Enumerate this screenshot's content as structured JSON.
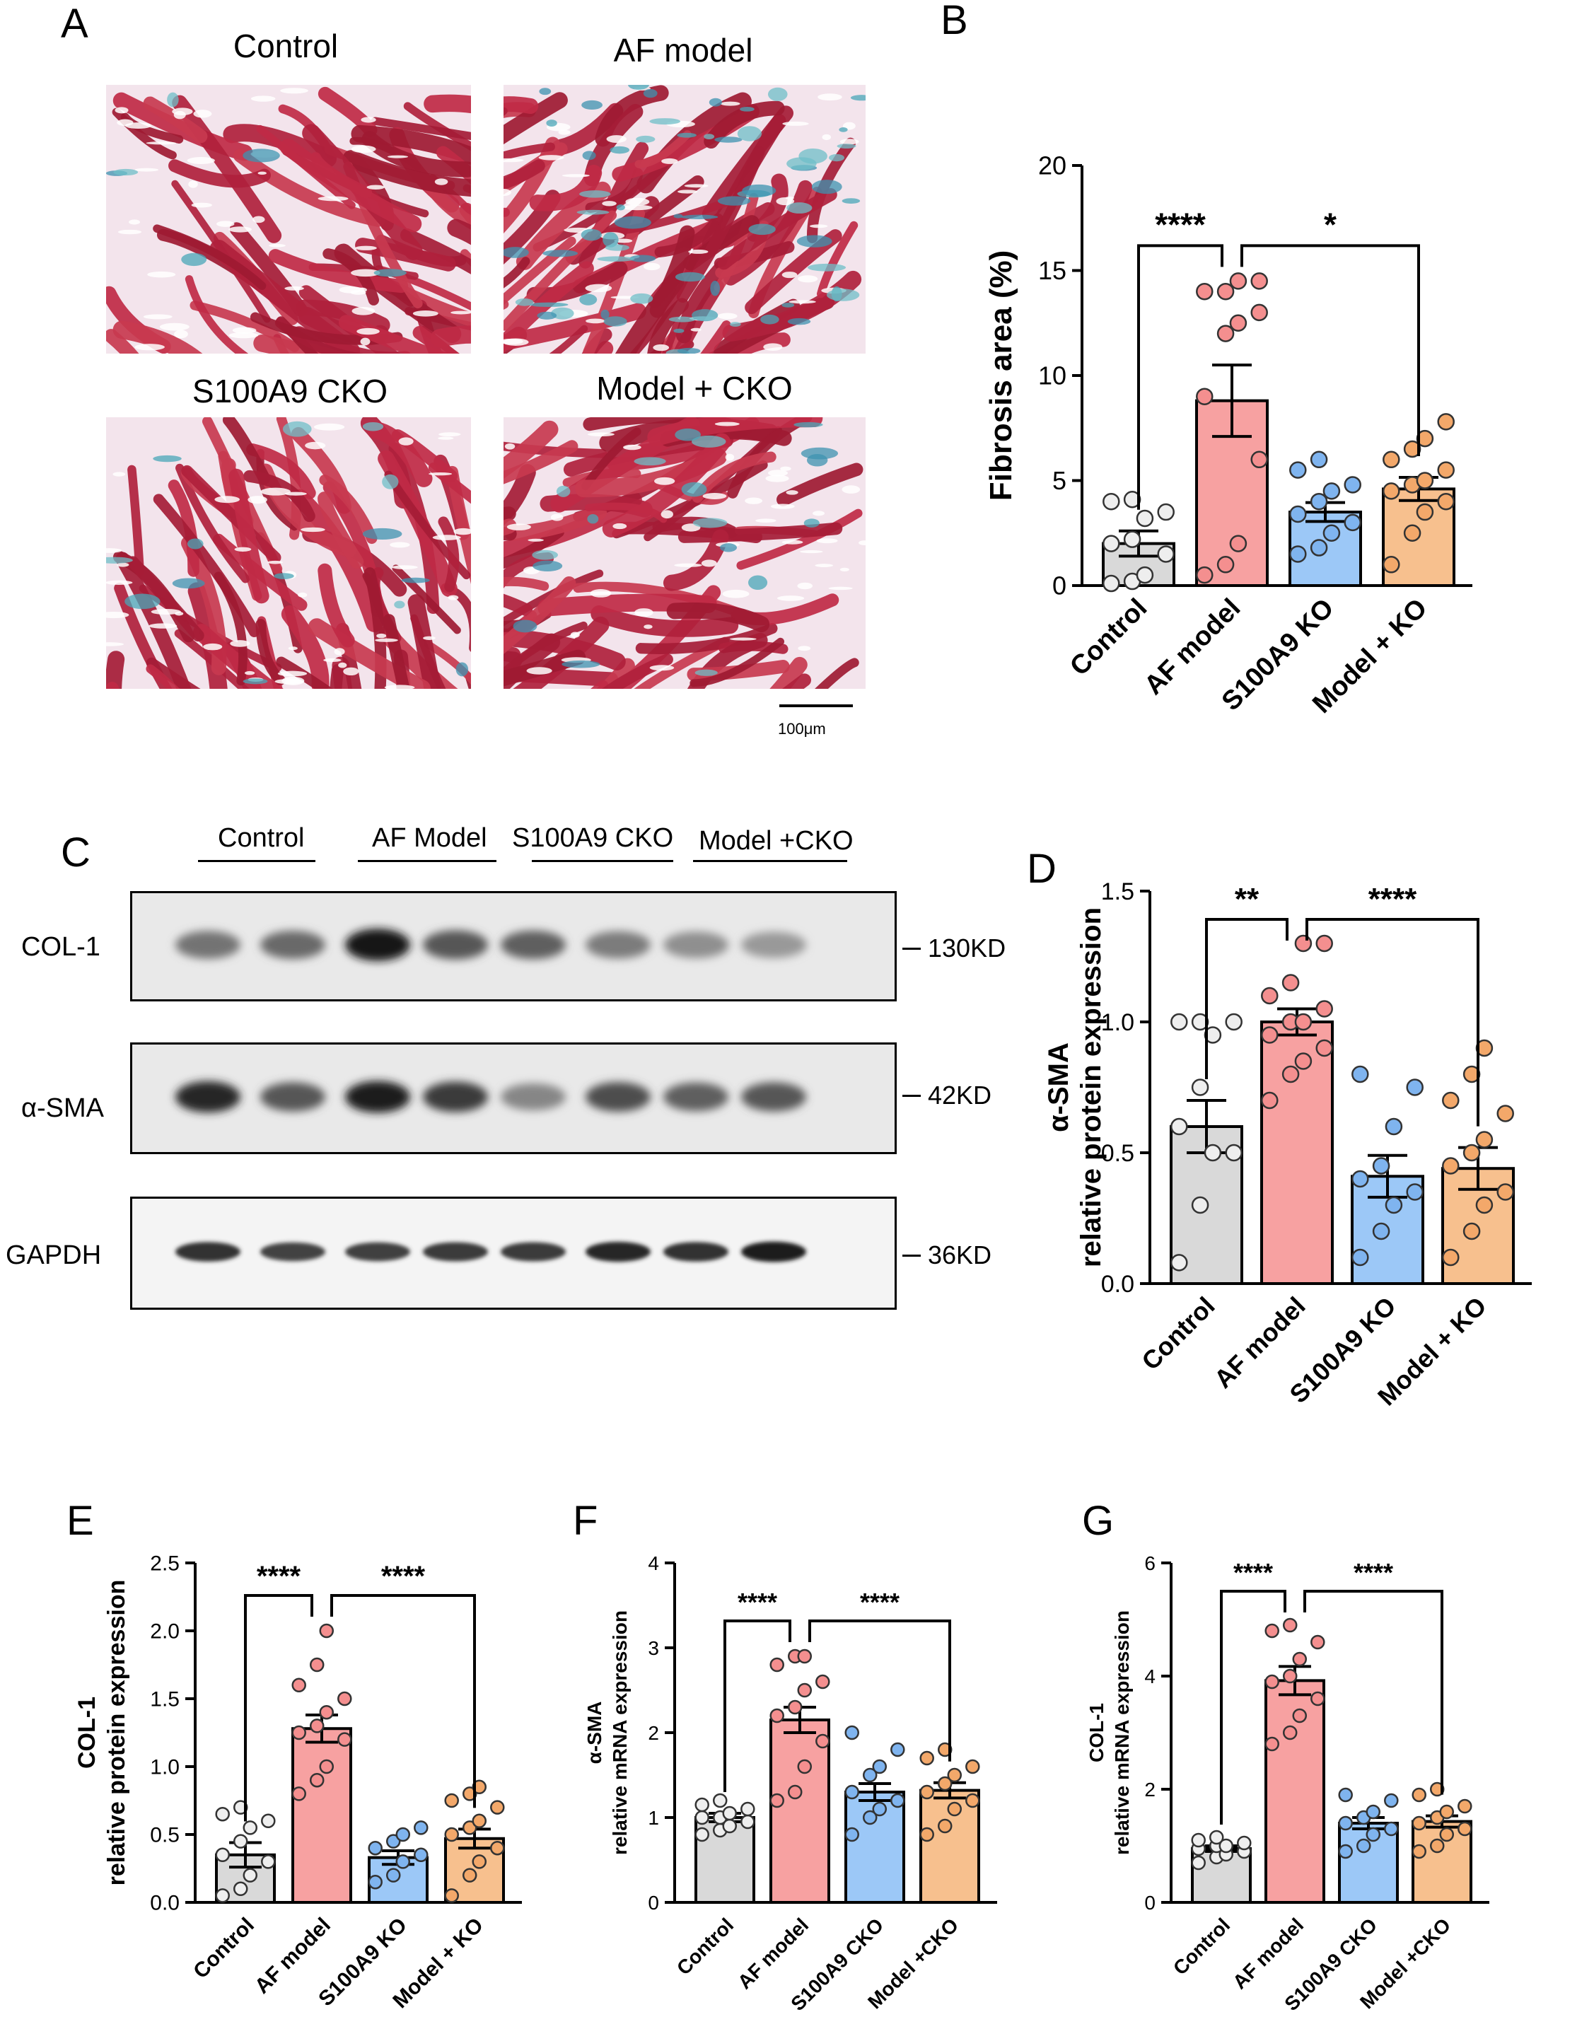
{
  "panels": {
    "A": {
      "letter": "A",
      "images": [
        {
          "title": "Control",
          "fibrosis_level": 0.05
        },
        {
          "title": "AF model",
          "fibrosis_level": 0.55
        },
        {
          "title": "S100A9 CKO",
          "fibrosis_level": 0.12
        },
        {
          "title": "Model + CKO",
          "fibrosis_level": 0.15
        }
      ],
      "scale_bar_label": "100μm"
    },
    "C": {
      "letter": "C",
      "lane_groups": [
        "Control",
        "AF Model",
        "S100A9 CKO",
        "Model +CKO"
      ],
      "blots": [
        {
          "label": "COL-1",
          "kd": "130KD",
          "band_intensity": [
            0.45,
            0.5,
            0.95,
            0.6,
            0.55,
            0.4,
            0.3,
            0.25
          ]
        },
        {
          "label": "α-SMA",
          "kd": "42KD",
          "band_intensity": [
            0.85,
            0.6,
            0.9,
            0.75,
            0.35,
            0.65,
            0.55,
            0.6
          ]
        },
        {
          "label": "GAPDH",
          "kd": "36KD",
          "band_intensity": [
            0.8,
            0.7,
            0.72,
            0.75,
            0.75,
            0.85,
            0.8,
            0.9
          ]
        }
      ]
    }
  },
  "palette": {
    "control": "#d9d9d9",
    "af": "#f7a1a1",
    "ko": "#9cc8f7",
    "mko": "#f7c08e",
    "control_dot": "#eeeeee",
    "af_dot": "#f48f8f",
    "ko_dot": "#7fb4ef",
    "mko_dot": "#f3a86a"
  },
  "chart_data": [
    {
      "letter": "B",
      "type": "bar",
      "categories": [
        "Control",
        "AF model",
        "S100A9 KO",
        "Model + KO"
      ],
      "values": [
        2.0,
        8.8,
        3.5,
        4.6
      ],
      "errors": [
        0.6,
        1.7,
        0.45,
        0.55
      ],
      "points": [
        [
          0.1,
          0.2,
          0.5,
          1.5,
          2.0,
          2.2,
          3.2,
          3.5,
          4.0,
          4.1
        ],
        [
          0.5,
          1.0,
          2.0,
          6.0,
          9.0,
          12.0,
          12.5,
          13.0,
          14.0,
          14.0,
          14.5,
          14.5
        ],
        [
          1.5,
          1.8,
          2.5,
          3.0,
          3.4,
          4.0,
          4.5,
          4.8,
          5.5,
          6.0
        ],
        [
          1.0,
          2.5,
          3.5,
          4.0,
          4.5,
          4.8,
          5.0,
          5.5,
          6.0,
          6.5,
          7.0,
          7.8
        ]
      ],
      "ylabel": "Fibrosis area (%)",
      "ylabel2": "",
      "ylim": [
        0,
        20
      ],
      "yticks": [
        "0",
        "5",
        "10",
        "15",
        "20"
      ],
      "sig": [
        {
          "from": 0,
          "to": 1,
          "label": "****"
        },
        {
          "from": 1,
          "to": 3,
          "label": "*"
        }
      ]
    },
    {
      "letter": "D",
      "type": "bar",
      "categories": [
        "Control",
        "AF model",
        "S100A9 KO",
        "Model + KO"
      ],
      "values": [
        0.6,
        1.0,
        0.41,
        0.44
      ],
      "errors": [
        0.1,
        0.05,
        0.08,
        0.08
      ],
      "points": [
        [
          0.08,
          0.3,
          0.5,
          0.5,
          0.6,
          0.75,
          0.95,
          1.0,
          1.0,
          1.0
        ],
        [
          0.7,
          0.8,
          0.85,
          0.9,
          0.95,
          1.0,
          1.0,
          1.05,
          1.1,
          1.15,
          1.3,
          1.3
        ],
        [
          0.1,
          0.2,
          0.3,
          0.35,
          0.4,
          0.45,
          0.6,
          0.75,
          0.8
        ],
        [
          0.1,
          0.2,
          0.3,
          0.35,
          0.45,
          0.5,
          0.55,
          0.65,
          0.7,
          0.8,
          0.9
        ]
      ],
      "ylabel": "α-SMA",
      "ylabel2": "relative protein expression",
      "ylim": [
        0,
        1.5
      ],
      "yticks": [
        "0.0",
        "0.5",
        "1.0",
        "1.5"
      ],
      "sig": [
        {
          "from": 0,
          "to": 1,
          "label": "**"
        },
        {
          "from": 1,
          "to": 3,
          "label": "****"
        }
      ]
    },
    {
      "letter": "E",
      "type": "bar",
      "categories": [
        "Control",
        "AF model",
        "S100A9 KO",
        "Model + KO"
      ],
      "values": [
        0.35,
        1.28,
        0.33,
        0.47
      ],
      "errors": [
        0.09,
        0.1,
        0.05,
        0.07
      ],
      "points": [
        [
          0.05,
          0.1,
          0.2,
          0.3,
          0.35,
          0.45,
          0.55,
          0.6,
          0.65,
          0.7
        ],
        [
          0.8,
          0.9,
          1.0,
          1.2,
          1.25,
          1.3,
          1.4,
          1.5,
          1.6,
          1.75,
          2.0
        ],
        [
          0.15,
          0.2,
          0.3,
          0.35,
          0.4,
          0.45,
          0.5,
          0.55
        ],
        [
          0.05,
          0.2,
          0.3,
          0.4,
          0.5,
          0.55,
          0.6,
          0.7,
          0.75,
          0.8,
          0.85
        ]
      ],
      "ylabel": "COL-1",
      "ylabel2": "relative protein expression",
      "ylim": [
        0,
        2.5
      ],
      "yticks": [
        "0.0",
        "0.5",
        "1.0",
        "1.5",
        "2.0",
        "2.5"
      ],
      "sig": [
        {
          "from": 0,
          "to": 1,
          "label": "****"
        },
        {
          "from": 1,
          "to": 3,
          "label": "****"
        }
      ]
    },
    {
      "letter": "F",
      "type": "bar",
      "categories": [
        "Control",
        "AF model",
        "S100A9 CKO",
        "Model +CKO"
      ],
      "values": [
        1.0,
        2.15,
        1.3,
        1.32
      ],
      "errors": [
        0.05,
        0.15,
        0.1,
        0.09
      ],
      "points": [
        [
          0.8,
          0.85,
          0.9,
          0.95,
          1.0,
          1.0,
          1.05,
          1.1,
          1.15,
          1.2
        ],
        [
          1.2,
          1.3,
          1.6,
          1.9,
          2.2,
          2.3,
          2.5,
          2.6,
          2.8,
          2.9,
          2.9
        ],
        [
          0.8,
          1.0,
          1.1,
          1.2,
          1.3,
          1.5,
          1.6,
          1.8,
          2.0
        ],
        [
          0.8,
          0.9,
          1.1,
          1.2,
          1.3,
          1.4,
          1.5,
          1.6,
          1.7,
          1.8
        ]
      ],
      "ylabel": "α-SMA",
      "ylabel2": "relative mRNA expression",
      "ylim": [
        0,
        4
      ],
      "yticks": [
        "0",
        "1",
        "2",
        "3",
        "4"
      ],
      "sig": [
        {
          "from": 0,
          "to": 1,
          "label": "****"
        },
        {
          "from": 1,
          "to": 3,
          "label": "****"
        }
      ]
    },
    {
      "letter": "G",
      "type": "bar",
      "categories": [
        "Control",
        "AF model",
        "S100A9 CKO",
        "Model +CKO"
      ],
      "values": [
        0.95,
        3.92,
        1.4,
        1.43
      ],
      "errors": [
        0.05,
        0.25,
        0.1,
        0.1
      ],
      "points": [
        [
          0.7,
          0.8,
          0.85,
          0.9,
          0.95,
          1.0,
          1.0,
          1.05,
          1.1,
          1.15
        ],
        [
          2.8,
          3.0,
          3.3,
          3.6,
          3.9,
          4.0,
          4.3,
          4.6,
          4.8,
          4.9
        ],
        [
          0.9,
          1.0,
          1.2,
          1.3,
          1.4,
          1.5,
          1.6,
          1.8,
          1.9
        ],
        [
          0.9,
          1.0,
          1.2,
          1.3,
          1.4,
          1.5,
          1.6,
          1.7,
          1.9,
          2.0
        ]
      ],
      "ylabel": "COL-1",
      "ylabel2": "relative mRNA expression",
      "ylim": [
        0,
        6
      ],
      "yticks": [
        "0",
        "2",
        "4",
        "6"
      ],
      "sig": [
        {
          "from": 0,
          "to": 1,
          "label": "****"
        },
        {
          "from": 1,
          "to": 3,
          "label": "****"
        }
      ]
    }
  ]
}
